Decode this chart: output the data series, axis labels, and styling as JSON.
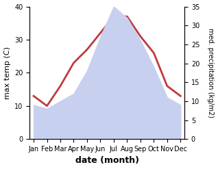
{
  "months": [
    "Jan",
    "Feb",
    "Mar",
    "Apr",
    "May",
    "Jun",
    "Jul",
    "Aug",
    "Sep",
    "Oct",
    "Nov",
    "Dec"
  ],
  "temperature": [
    13,
    10,
    16,
    23,
    27,
    32,
    37,
    37,
    31,
    26,
    16,
    13
  ],
  "precipitation": [
    9,
    8,
    10,
    12,
    18,
    27,
    35,
    32,
    26,
    19,
    11,
    9
  ],
  "temp_color": "#c0393b",
  "precip_fill_color": "#c8d0f0",
  "temp_ylim": [
    0,
    40
  ],
  "precip_ylim": [
    0,
    35
  ],
  "temp_yticks": [
    0,
    10,
    20,
    30,
    40
  ],
  "precip_yticks": [
    0,
    5,
    10,
    15,
    20,
    25,
    30,
    35
  ],
  "xlabel": "date (month)",
  "ylabel_left": "max temp (C)",
  "ylabel_right": "med. precipitation (kg/m2)",
  "background_color": "#ffffff"
}
